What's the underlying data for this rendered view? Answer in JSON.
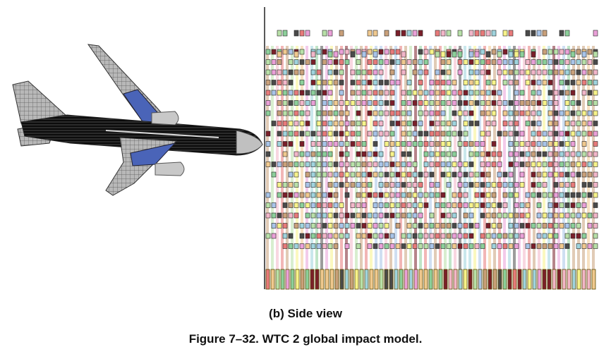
{
  "figure": {
    "sub_caption": "(b) Side view",
    "caption": "Figure 7–32.  WTC 2 global impact model."
  },
  "aircraft": {
    "fuselage_color": "#111111",
    "wing_color": "#4a64b8",
    "structure_color": "#9a9a9a",
    "engine_color": "#c8c8c8"
  },
  "tower_model": {
    "frame_color": "#222222",
    "palette": [
      "#f7f38a",
      "#f2b6c9",
      "#e77a7a",
      "#8ccf9a",
      "#9fd3dd",
      "#c9a07a",
      "#b8e0a8",
      "#eaa0d8",
      "#7a1f2a",
      "#4a4a4a",
      "#f0c98f",
      "#a8c4e8"
    ]
  }
}
